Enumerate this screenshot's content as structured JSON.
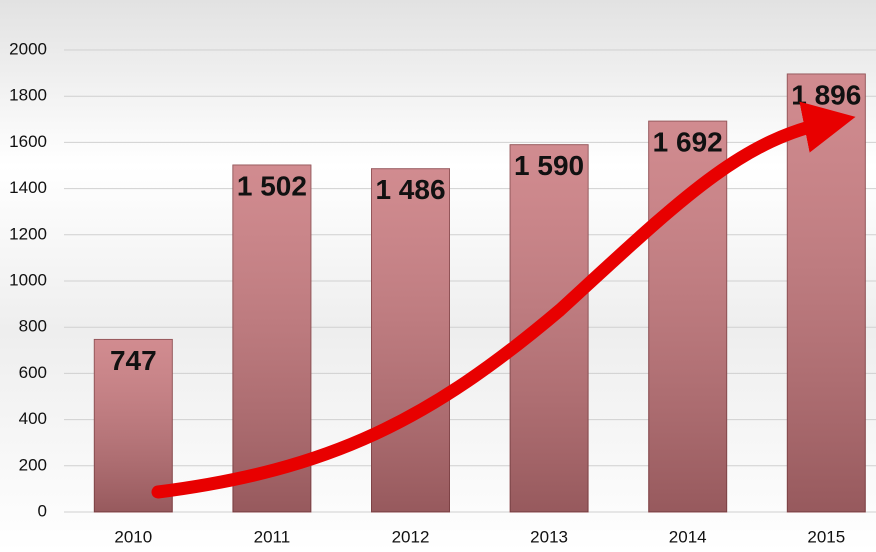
{
  "chart_data": {
    "type": "bar",
    "categories": [
      "2010",
      "2011",
      "2012",
      "2013",
      "2014",
      "2015"
    ],
    "values": [
      747,
      1502,
      1486,
      1590,
      1692,
      1896
    ],
    "value_labels": [
      "747",
      "1 502",
      "1 486",
      "1 590",
      "1 692",
      "1 896"
    ],
    "color": "#c9777c",
    "ylim": [
      0,
      2000
    ],
    "yticks": [
      0,
      200,
      400,
      600,
      800,
      1000,
      1200,
      1400,
      1600,
      1800,
      2000
    ],
    "grid": true
  }
}
